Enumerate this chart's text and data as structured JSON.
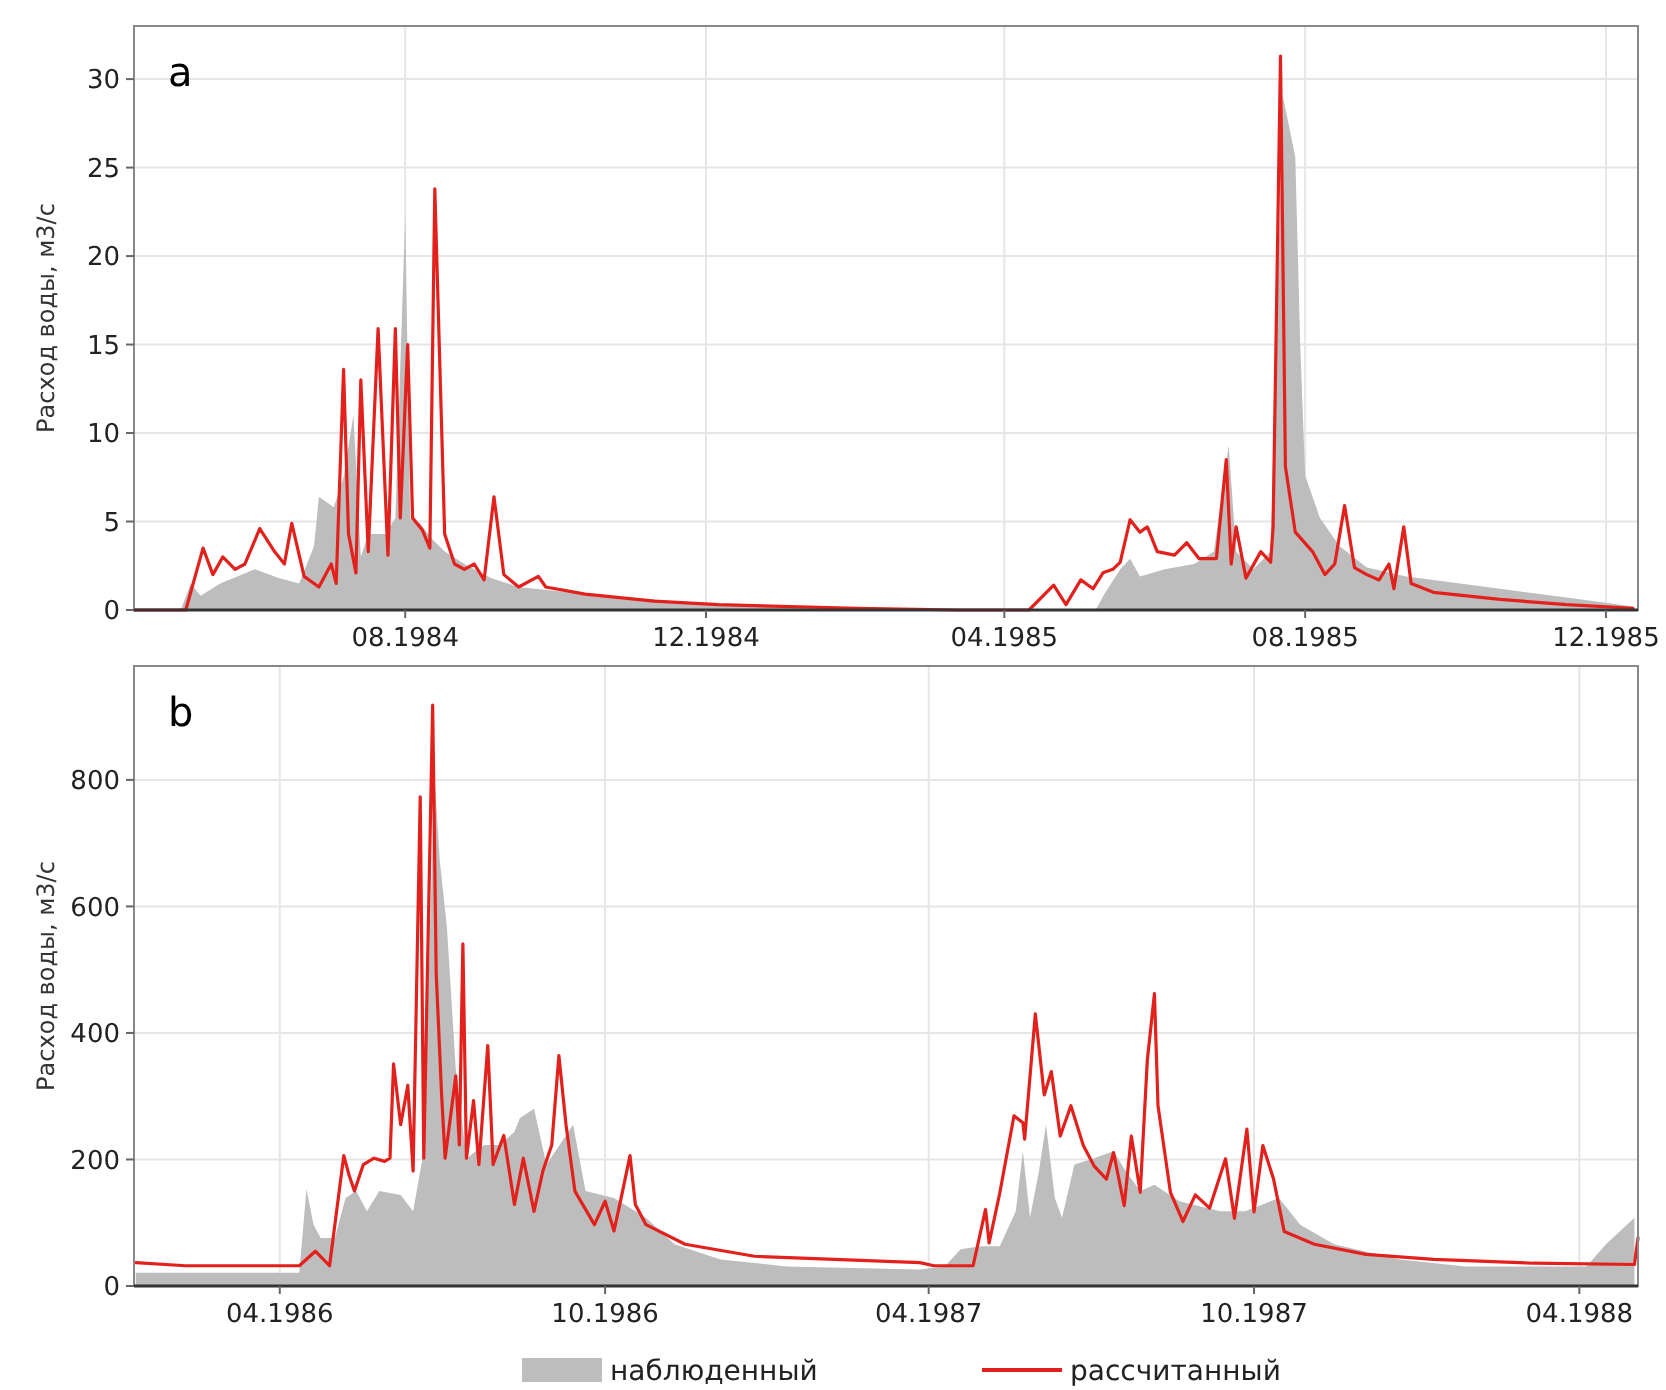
{
  "chart_data": [
    {
      "type": "line",
      "title": "a",
      "ylabel": "Расход воды, м3/с",
      "xlim": [
        "1984-04-13",
        "1985-12-14"
      ],
      "ylim": [
        0,
        33
      ],
      "yticks": [
        0,
        5,
        10,
        15,
        20,
        25,
        30
      ],
      "xticks": [
        {
          "value": "1984-08-01",
          "label": "08.1984"
        },
        {
          "value": "1984-12-01",
          "label": "12.1984"
        },
        {
          "value": "1985-04-01",
          "label": "04.1985"
        },
        {
          "value": "1985-08-01",
          "label": "08.1985"
        },
        {
          "value": "1985-12-01",
          "label": "12.1985"
        }
      ],
      "grid": true,
      "legend": false,
      "series": [
        {
          "type": "area",
          "color": "#bdbdbd",
          "x": [
            "1984-04-13",
            "1984-05-02",
            "1984-05-06",
            "1984-05-10",
            "1984-05-18",
            "1984-06-01",
            "1984-06-11",
            "1984-06-19",
            "1984-06-25",
            "1984-06-27",
            "1984-07-03",
            "1984-07-07",
            "1984-07-11",
            "1984-07-14",
            "1984-07-17",
            "1984-07-24",
            "1984-07-28",
            "1984-08-01",
            "1984-08-03",
            "1984-08-07",
            "1984-08-12",
            "1984-08-17",
            "1984-08-25",
            "1984-09-05",
            "1984-09-16",
            "1984-10-13",
            "1984-12-06",
            "1985-01-31",
            "1985-03-14",
            "1985-05-08",
            "1985-05-12",
            "1985-05-18",
            "1985-05-22",
            "1985-05-26",
            "1985-06-05",
            "1985-06-17",
            "1985-06-25",
            "1985-07-01",
            "1985-07-04",
            "1985-07-11",
            "1985-07-18",
            "1985-07-23",
            "1985-07-28",
            "1985-07-30",
            "1985-08-01",
            "1985-08-07",
            "1985-08-15",
            "1985-08-26",
            "1985-09-11",
            "1985-09-22",
            "1985-10-19",
            "1985-11-15",
            "1985-12-12"
          ],
          "values": [
            0,
            0,
            1.5,
            0.8,
            1.5,
            2.3,
            1.8,
            1.5,
            3.6,
            6.4,
            5.8,
            7.5,
            11.0,
            3.0,
            4.3,
            4.3,
            5.2,
            22.3,
            5.2,
            4.9,
            4.0,
            3.3,
            2.6,
            1.8,
            1.3,
            0.9,
            0.3,
            0.1,
            0,
            0,
            1.0,
            2.3,
            2.9,
            1.9,
            2.3,
            2.6,
            3.3,
            9.3,
            3.3,
            2.3,
            3.3,
            29.0,
            25.6,
            15.0,
            7.6,
            5.2,
            3.6,
            2.4,
            1.9,
            1.7,
            1.2,
            0.7,
            0.2
          ]
        },
        {
          "type": "line",
          "color": "#e3211c",
          "x": [
            "1984-04-13",
            "1984-05-04",
            "1984-05-11",
            "1984-05-15",
            "1984-05-19",
            "1984-05-24",
            "1984-05-28",
            "1984-06-03",
            "1984-06-09",
            "1984-06-13",
            "1984-06-16",
            "1984-06-21",
            "1984-06-27",
            "1984-07-02",
            "1984-07-04",
            "1984-07-07",
            "1984-07-09",
            "1984-07-12",
            "1984-07-14",
            "1984-07-17",
            "1984-07-21",
            "1984-07-25",
            "1984-07-28",
            "1984-07-30",
            "1984-08-02",
            "1984-08-04",
            "1984-08-08",
            "1984-08-11",
            "1984-08-13",
            "1984-08-17",
            "1984-08-21",
            "1984-08-25",
            "1984-08-29",
            "1984-09-02",
            "1984-09-06",
            "1984-09-10",
            "1984-09-16",
            "1984-09-24",
            "1984-09-27",
            "1984-10-13",
            "1984-11-10",
            "1984-12-06",
            "1985-01-31",
            "1985-03-14",
            "1985-04-11",
            "1985-04-21",
            "1985-04-26",
            "1985-05-02",
            "1985-05-07",
            "1985-05-11",
            "1985-05-15",
            "1985-05-18",
            "1985-05-22",
            "1985-05-26",
            "1985-05-29",
            "1985-06-02",
            "1985-06-09",
            "1985-06-14",
            "1985-06-19",
            "1985-06-26",
            "1985-06-30",
            "1985-07-02",
            "1985-07-04",
            "1985-07-08",
            "1985-07-14",
            "1985-07-18",
            "1985-07-19",
            "1985-07-22",
            "1985-07-24",
            "1985-07-28",
            "1985-08-04",
            "1985-08-09",
            "1985-08-13",
            "1985-08-17",
            "1985-08-21",
            "1985-08-26",
            "1985-08-31",
            "1985-09-04",
            "1985-09-06",
            "1985-09-10",
            "1985-09-13",
            "1985-09-22",
            "1985-10-19",
            "1985-11-15",
            "1985-12-12"
          ],
          "values": [
            0,
            0,
            3.5,
            2.0,
            3.0,
            2.3,
            2.6,
            4.6,
            3.3,
            2.6,
            4.9,
            1.9,
            1.3,
            2.6,
            1.5,
            13.6,
            4.3,
            2.1,
            13.0,
            3.3,
            15.9,
            3.1,
            15.9,
            5.2,
            15.0,
            5.2,
            4.5,
            3.5,
            23.8,
            4.3,
            2.6,
            2.3,
            2.6,
            1.7,
            6.4,
            2.0,
            1.3,
            1.9,
            1.3,
            0.9,
            0.5,
            0.3,
            0.1,
            0,
            0,
            1.4,
            0.3,
            1.7,
            1.2,
            2.1,
            2.3,
            2.7,
            5.1,
            4.4,
            4.7,
            3.3,
            3.1,
            3.8,
            2.9,
            2.9,
            8.5,
            2.6,
            4.7,
            1.8,
            3.3,
            2.7,
            4.7,
            31.3,
            8.1,
            4.4,
            3.3,
            2.0,
            2.6,
            5.9,
            2.4,
            2.0,
            1.7,
            2.6,
            1.2,
            4.7,
            1.5,
            1.0,
            0.6,
            0.3,
            0.1
          ]
        }
      ]
    },
    {
      "type": "line",
      "title": "b",
      "ylabel": "Расход воды, м3/с",
      "xlim": [
        "1986-01-09",
        "1988-05-04"
      ],
      "ylim": [
        0,
        980
      ],
      "yticks": [
        0,
        200,
        400,
        600,
        800
      ],
      "xticks": [
        {
          "value": "1986-04-01",
          "label": "04.1986"
        },
        {
          "value": "1986-10-01",
          "label": "10.1986"
        },
        {
          "value": "1987-04-01",
          "label": "04.1987"
        },
        {
          "value": "1987-10-01",
          "label": "10.1987"
        },
        {
          "value": "1988-04-01",
          "label": "04.1988"
        }
      ],
      "grid": true,
      "legend": "bottom",
      "series": [
        {
          "type": "area",
          "name": "наблюденный",
          "color": "#bdbdbd",
          "x": [
            "1986-01-10",
            "1986-04-12",
            "1986-04-16",
            "1986-04-20",
            "1986-04-24",
            "1986-05-02",
            "1986-05-08",
            "1986-05-14",
            "1986-05-20",
            "1986-05-27",
            "1986-06-08",
            "1986-06-15",
            "1986-06-21",
            "1986-06-27",
            "1986-06-30",
            "1986-07-04",
            "1986-07-09",
            "1986-07-15",
            "1986-07-25",
            "1986-08-03",
            "1986-08-11",
            "1986-08-14",
            "1986-08-22",
            "1986-08-29",
            "1986-09-13",
            "1986-09-20",
            "1986-10-06",
            "1986-10-24",
            "1986-11-09",
            "1986-12-05",
            "1987-01-11",
            "1987-03-27",
            "1987-04-10",
            "1987-04-19",
            "1987-04-30",
            "1987-05-11",
            "1987-05-20",
            "1987-05-24",
            "1987-05-28",
            "1987-06-02",
            "1987-06-06",
            "1987-06-11",
            "1987-06-15",
            "1987-06-22",
            "1987-07-03",
            "1987-07-14",
            "1987-07-21",
            "1987-07-29",
            "1987-08-06",
            "1987-08-20",
            "1987-09-12",
            "1987-09-26",
            "1987-10-15",
            "1987-10-27",
            "1987-11-15",
            "1987-12-22",
            "1988-01-28",
            "1988-04-05",
            "1988-04-16",
            "1988-05-02"
          ],
          "values": [
            21,
            21,
            153,
            97,
            76,
            76,
            139,
            150,
            118,
            150,
            144,
            118,
            213,
            808,
            672,
            568,
            343,
            202,
            223,
            223,
            244,
            265,
            280,
            192,
            255,
            150,
            139,
            108,
            66,
            42,
            31,
            26,
            31,
            58,
            63,
            63,
            118,
            213,
            108,
            181,
            255,
            139,
            108,
            192,
            202,
            213,
            181,
            150,
            160,
            134,
            118,
            118,
            139,
            97,
            66,
            42,
            31,
            31,
            66,
            108
          ]
        },
        {
          "type": "line",
          "name": "рассчитанный",
          "color": "#e3211c",
          "x": [
            "1986-01-10",
            "1986-02-07",
            "1986-04-12",
            "1986-04-21",
            "1986-04-29",
            "1986-05-07",
            "1986-05-10",
            "1986-05-13",
            "1986-05-18",
            "1986-05-24",
            "1986-05-30",
            "1986-06-02",
            "1986-06-04",
            "1986-06-08",
            "1986-06-12",
            "1986-06-15",
            "1986-06-19",
            "1986-06-21",
            "1986-06-26",
            "1986-06-28",
            "1986-07-01",
            "1986-07-03",
            "1986-07-09",
            "1986-07-11",
            "1986-07-13",
            "1986-07-15",
            "1986-07-19",
            "1986-07-22",
            "1986-07-27",
            "1986-07-30",
            "1986-08-05",
            "1986-08-11",
            "1986-08-16",
            "1986-08-22",
            "1986-08-27",
            "1986-09-01",
            "1986-09-05",
            "1986-09-09",
            "1986-09-14",
            "1986-09-25",
            "1986-10-01",
            "1986-10-06",
            "1986-10-10",
            "1986-10-15",
            "1986-10-18",
            "1986-10-24",
            "1986-11-15",
            "1986-12-24",
            "1987-03-27",
            "1987-04-04",
            "1987-04-26",
            "1987-05-03",
            "1987-05-05",
            "1987-05-11",
            "1987-05-19",
            "1987-05-24",
            "1987-05-25",
            "1987-05-31",
            "1987-06-05",
            "1987-06-09",
            "1987-06-14",
            "1987-06-20",
            "1987-06-27",
            "1987-07-03",
            "1987-07-10",
            "1987-07-14",
            "1987-07-20",
            "1987-07-24",
            "1987-07-29",
            "1987-08-02",
            "1987-08-06",
            "1987-08-08",
            "1987-08-15",
            "1987-08-22",
            "1987-08-29",
            "1987-09-06",
            "1987-09-15",
            "1987-09-20",
            "1987-09-27",
            "1987-10-01",
            "1987-10-06",
            "1987-10-12",
            "1987-10-18",
            "1987-11-04",
            "1987-12-03",
            "1988-01-10",
            "1988-03-06",
            "1988-05-02",
            "1988-05-04"
          ],
          "values": [
            37,
            32,
            32,
            55,
            32,
            206,
            175,
            150,
            192,
            202,
            197,
            202,
            351,
            255,
            317,
            182,
            773,
            202,
            918,
            493,
            304,
            202,
            332,
            223,
            541,
            202,
            293,
            192,
            380,
            192,
            238,
            129,
            202,
            118,
            182,
            223,
            364,
            255,
            150,
            97,
            134,
            87,
            139,
            206,
            129,
            97,
            66,
            47,
            37,
            32,
            32,
            121,
            68,
            147,
            269,
            258,
            232,
            430,
            302,
            339,
            237,
            285,
            222,
            190,
            169,
            211,
            127,
            237,
            148,
            357,
            462,
            285,
            148,
            102,
            144,
            123,
            201,
            107,
            248,
            117,
            222,
            169,
            86,
            66,
            50,
            42,
            36,
            34,
            76
          ]
        }
      ]
    }
  ]
}
